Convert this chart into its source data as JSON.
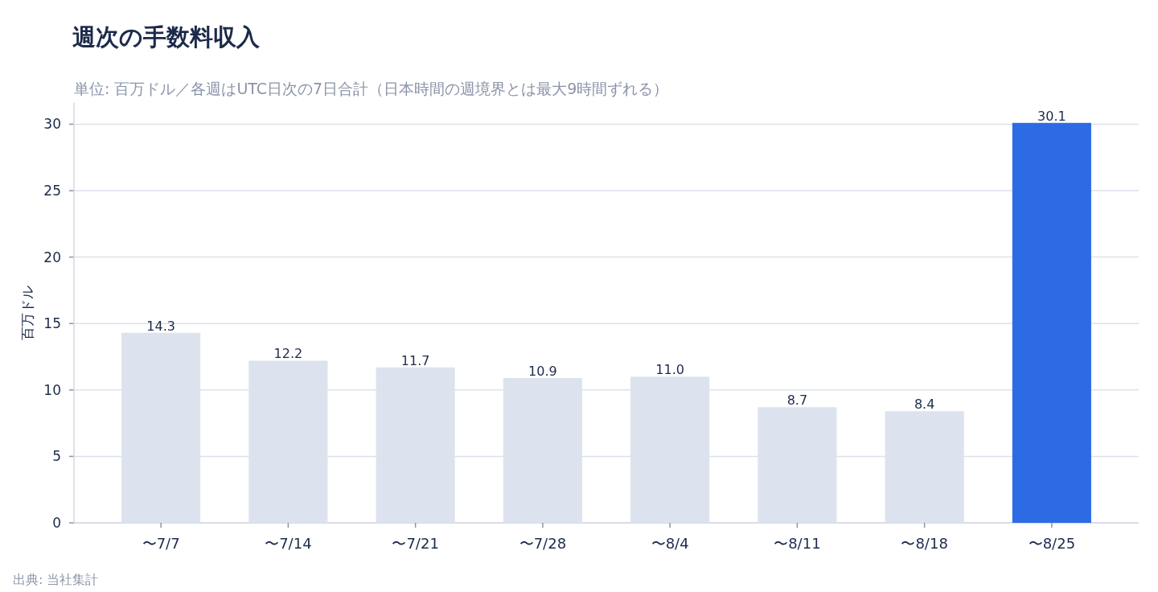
{
  "chart_data": {
    "type": "bar",
    "title": "週次の手数料収入",
    "subtitle": "単位: 百万ドル／各週はUTC日次の7日合計（日本時間の週境界とは最大9時間ずれる）",
    "ylabel": "百万ドル",
    "categories": [
      "〜7/7",
      "〜7/14",
      "〜7/21",
      "〜7/28",
      "〜8/4",
      "〜8/11",
      "〜8/18",
      "〜8/25"
    ],
    "values": [
      14.3,
      12.2,
      11.7,
      10.9,
      11.0,
      8.7,
      8.4,
      30.1
    ],
    "colors": [
      "#dce3ee",
      "#dce3ee",
      "#dce3ee",
      "#dce3ee",
      "#dce3ee",
      "#dce3ee",
      "#dce3ee",
      "#2d6be4"
    ],
    "ylim": [
      0,
      31.6
    ],
    "yticks": [
      0,
      5,
      10,
      15,
      20,
      25,
      30
    ],
    "value_labels": [
      "14.3",
      "12.2",
      "11.7",
      "10.9",
      "11.0",
      "8.7",
      "8.4",
      "30.1"
    ],
    "grid": "y",
    "annotations": [
      "出典: 当社集計"
    ]
  }
}
